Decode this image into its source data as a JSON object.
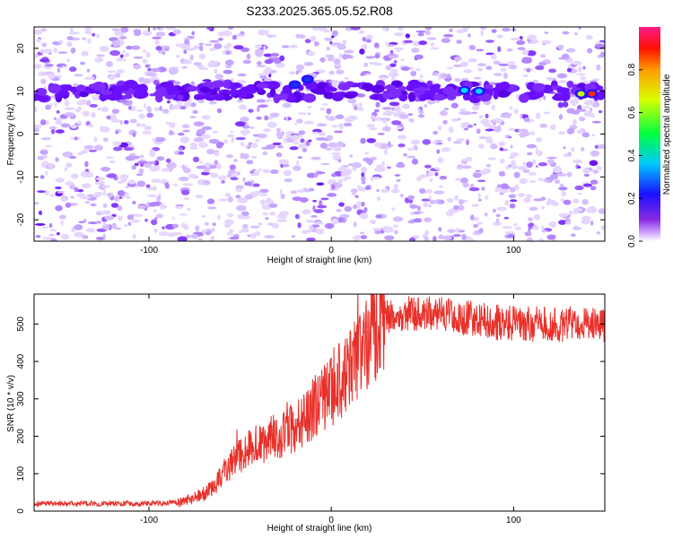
{
  "title": "S233.2025.365.05.52.R08",
  "chart_data": [
    {
      "type": "heatmap",
      "xlabel": "Height of straight line (km)",
      "ylabel": "Frequency (Hz)",
      "xlim": [
        -163,
        150
      ],
      "ylim": [
        -25,
        25
      ],
      "xticks": [
        -100,
        0,
        100
      ],
      "yticks": [
        -20,
        -10,
        0,
        10,
        20
      ],
      "colorbar": {
        "label": "Normalized spectral amplitude",
        "range": [
          0,
          1
        ],
        "ticks": [
          0.0,
          0.2,
          0.4,
          0.6,
          0.8
        ],
        "tick_labels": [
          "0.0",
          "0.2",
          "0.4",
          "0.6",
          "0.8"
        ]
      },
      "band": {
        "frequency_hz": 10,
        "width_hz": 2.5
      },
      "hotspots": [
        {
          "x_km": -20,
          "freq_hz": 11.5,
          "amplitude": 0.25
        },
        {
          "x_km": -13,
          "freq_hz": 12.8,
          "amplitude": 0.3
        },
        {
          "x_km": 73,
          "freq_hz": 10.2,
          "amplitude": 0.45
        },
        {
          "x_km": 81,
          "freq_hz": 10.0,
          "amplitude": 0.45
        },
        {
          "x_km": 137,
          "freq_hz": 9.4,
          "amplitude": 0.7
        },
        {
          "x_km": 143,
          "freq_hz": 9.4,
          "amplitude": 0.9
        }
      ]
    },
    {
      "type": "line",
      "xlabel": "Height of straight line (km)",
      "ylabel": "SNR (10 * v/v)",
      "xlim": [
        -163,
        150
      ],
      "ylim": [
        0,
        580
      ],
      "xticks": [
        -100,
        0,
        100
      ],
      "yticks": [
        0,
        100,
        200,
        300,
        400,
        500
      ],
      "series": [
        {
          "name": "SNR",
          "color": "#e8302a",
          "x": [
            -163,
            -100,
            -85,
            -75,
            -65,
            -58,
            -50,
            -42,
            -35,
            -25,
            -15,
            -8,
            0,
            10,
            20,
            28,
            35,
            50,
            70,
            90,
            110,
            130,
            150
          ],
          "y": [
            20,
            20,
            22,
            35,
            60,
            110,
            150,
            175,
            190,
            210,
            240,
            285,
            320,
            380,
            450,
            510,
            530,
            530,
            520,
            505,
            500,
            500,
            500
          ]
        }
      ]
    }
  ],
  "colors": {
    "axis": "#000000",
    "line": "#e8302a"
  }
}
